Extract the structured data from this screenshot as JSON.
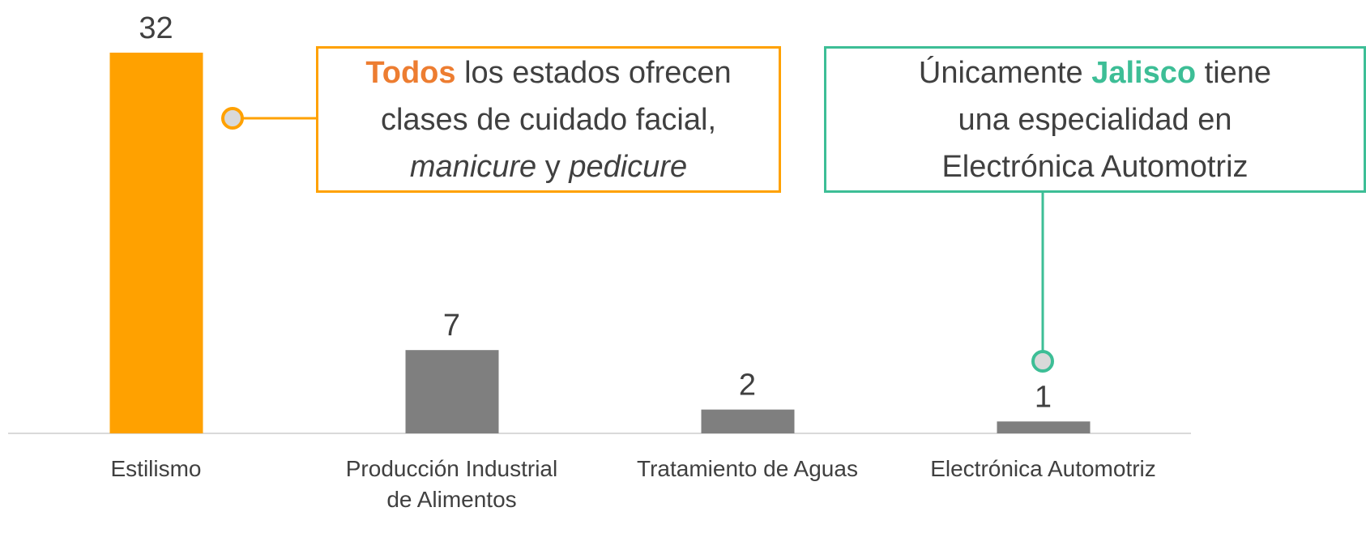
{
  "chart_data": {
    "type": "bar",
    "categories": [
      "Estilismo",
      "Producción Industrial\nde Alimentos",
      "Tratamiento de Aguas",
      "Electrónica Automotriz"
    ],
    "values": [
      32,
      7,
      2,
      1
    ],
    "colors": [
      "#FFA100",
      "#7F7F7F",
      "#7F7F7F",
      "#7F7F7F"
    ],
    "annotations": [
      {
        "color": "#FFA100",
        "highlight": "#ED7D31",
        "parts": [
          {
            "text": "Todos",
            "style": "bold"
          },
          {
            "text": " los estados ofrecen\nclases de cuidado facial,\n"
          },
          {
            "text": "manicure",
            "style": "italic"
          },
          {
            "text": " y "
          },
          {
            "text": "pedicure",
            "style": "italic"
          }
        ]
      },
      {
        "color": "#3DBE96",
        "highlight": "#3DBE96",
        "parts": [
          {
            "text": "Únicamente "
          },
          {
            "text": "Jalisco",
            "style": "bold"
          },
          {
            "text": " tiene\nuna especialidad en\nElectrónica Automotriz"
          }
        ]
      }
    ]
  }
}
